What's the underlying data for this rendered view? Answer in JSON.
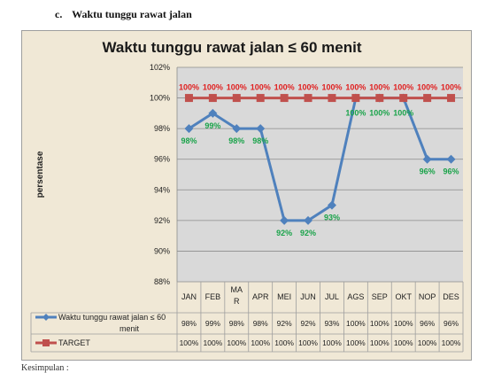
{
  "heading": {
    "number": "c.",
    "text": "Waktu tunggu rawat jalan"
  },
  "footer_cut_text": "Kesimpulan :",
  "chart_data": {
    "type": "line",
    "title": "Waktu tunggu rawat jalan ≤ 60 menit",
    "ylabel": "persentase",
    "xlabel": "",
    "categories": [
      "JAN",
      "FEB",
      "MAR",
      "APR",
      "MEI",
      "JUN",
      "JUL",
      "AGS",
      "SEP",
      "OKT",
      "NOP",
      "DES"
    ],
    "category_display": [
      "JAN",
      "FEB",
      "MA\nR",
      "APR",
      "MEI",
      "JUN",
      "JUL",
      "AGS",
      "SEP",
      "OKT",
      "NOP",
      "DES"
    ],
    "ylim": [
      88,
      102
    ],
    "yticks": [
      "102%",
      "100%",
      "98%",
      "96%",
      "94%",
      "92%",
      "90%",
      "88%"
    ],
    "grid": true,
    "legend_placement": "data-table",
    "series": [
      {
        "name": "Waktu tunggu rawat jalan ≤ 60 menit",
        "color": "#4f81bd",
        "marker": "diamond",
        "values": [
          98,
          99,
          98,
          98,
          92,
          92,
          93,
          100,
          100,
          100,
          96,
          96
        ],
        "labels": [
          "98%",
          "99%",
          "98%",
          "98%",
          "92%",
          "92%",
          "93%",
          "100%",
          "100%",
          "100%",
          "96%",
          "96%"
        ],
        "table_labels": [
          "98%",
          "99%",
          "98%",
          "98%",
          "92%",
          "92%",
          "93%",
          "100%",
          "100%",
          "100%",
          "96%",
          "96%"
        ],
        "label_color": "#1aa34a"
      },
      {
        "name": "TARGET",
        "color": "#c0504d",
        "marker": "square",
        "values": [
          100,
          100,
          100,
          100,
          100,
          100,
          100,
          100,
          100,
          100,
          100,
          100
        ],
        "labels": [
          "100%",
          "100%",
          "100%",
          "100%",
          "100%",
          "100%",
          "100%",
          "100%",
          "100%",
          "100%",
          "100%",
          "100%"
        ],
        "table_labels": [
          "100%",
          "100%",
          "100%",
          "100%",
          "100%",
          "100%",
          "100%",
          "100%",
          "100%",
          "100%",
          "100%",
          "100%"
        ],
        "label_color": "#e02020"
      }
    ]
  }
}
